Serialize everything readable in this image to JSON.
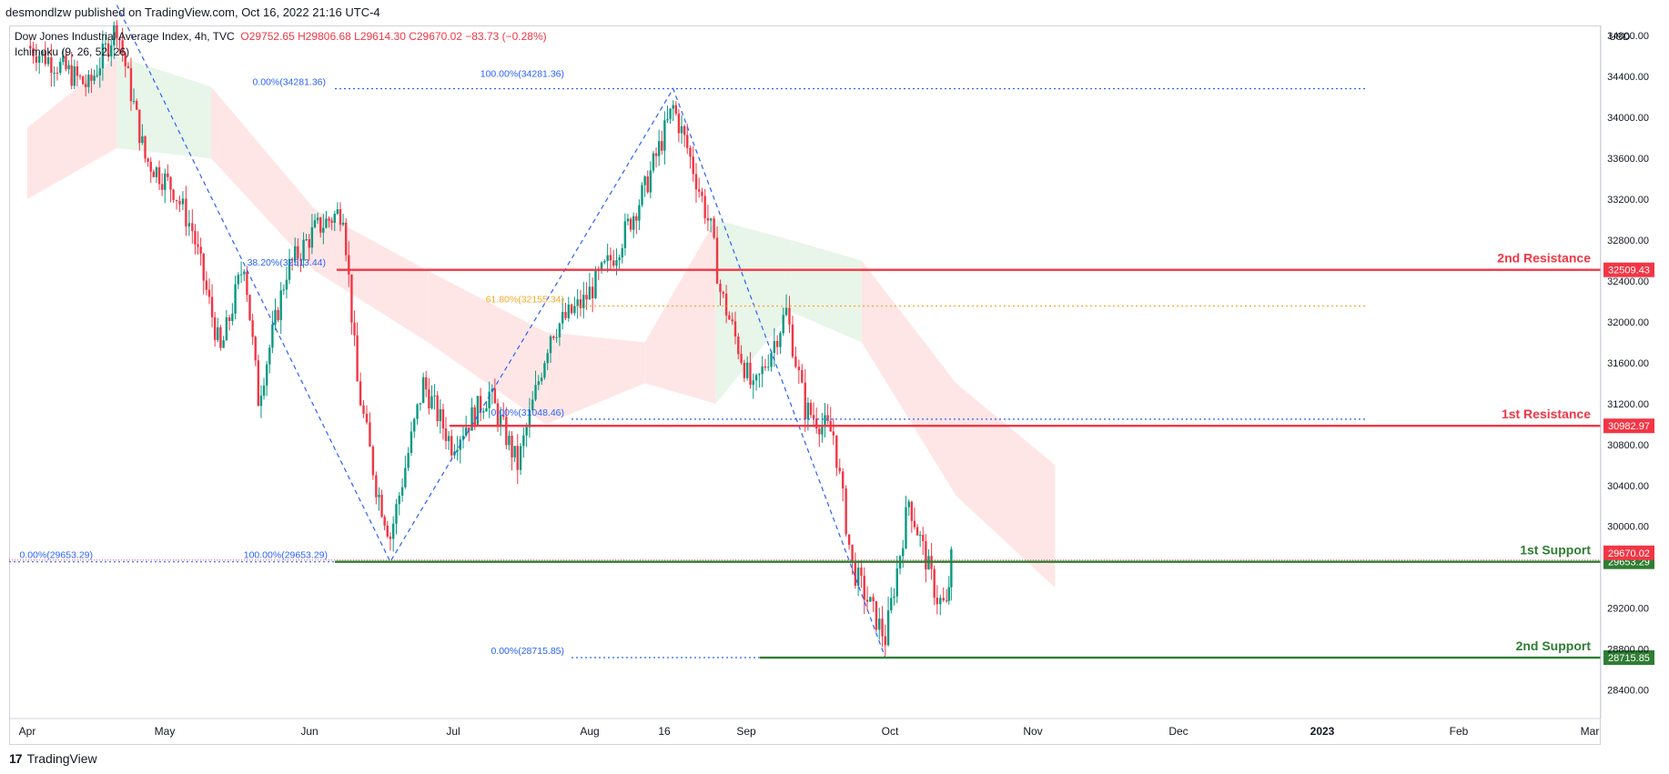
{
  "header": {
    "published_by": "desmondlzw published on TradingView.com, Oct 16, 2022 21:16 UTC-4"
  },
  "legend": {
    "symbol": "Dow Jones Industrial Average Index, 4h, TVC",
    "ohlc": "O29752.65  H29806.68  L29614.30  C29670.02  −83.73 (−0.28%)",
    "indicator": "Ichimoku (9, 26, 52, 26)"
  },
  "footer": {
    "brand": "TradingView",
    "logo_glyph": "17"
  },
  "chart_data": {
    "type": "candlestick",
    "currency_label": "USD",
    "x_ticks": [
      "Apr",
      "May",
      "Jun",
      "Jul",
      "Aug",
      "16",
      "Sep",
      "Oct",
      "Nov",
      "Dec",
      "2023",
      "Feb",
      "Mar"
    ],
    "x_ticks_bold": [
      "2023"
    ],
    "y_ticks": [
      "34800.00",
      "34400.00",
      "34000.00",
      "33600.00",
      "33200.00",
      "32800.00",
      "32400.00",
      "32000.00",
      "31600.00",
      "31200.00",
      "30800.00",
      "30400.00",
      "30000.00",
      "29200.00",
      "28800.00",
      "28400.00"
    ],
    "ylim": [
      28120,
      34900
    ],
    "x_range_months": [
      "2022-04",
      "2023-03"
    ],
    "colors": {
      "up": "#089981",
      "down": "#f23645",
      "resistance": "#f23645",
      "support": "#2e7d32",
      "fib_blue": "#2962ff",
      "fib_gold": "#f9a825",
      "cloud_bull": "#e8f5e9",
      "cloud_bear": "#ffe6e6"
    },
    "horizontal_levels": [
      {
        "label": "2nd Resistance",
        "value": 32509.43,
        "tag": "32509.43",
        "kind": "resistance"
      },
      {
        "label": "1st Resistance",
        "value": 30982.97,
        "tag": "30982.97",
        "kind": "resistance"
      },
      {
        "label": "1st Support",
        "value": 29653.29,
        "tag": "29653.29",
        "kind": "support"
      },
      {
        "label": "2nd Support",
        "value": 28715.85,
        "tag": "28715.85",
        "kind": "support"
      }
    ],
    "last_price": {
      "value": 29670.02,
      "tag": "29670.02"
    },
    "fib_labels": [
      {
        "text": "0.00%(34281.36)",
        "value": 34281.36
      },
      {
        "text": "100.00%(34281.36)",
        "value": 34281.36
      },
      {
        "text": "38.20%(32513.44)",
        "value": 32513.44
      },
      {
        "text": "61.80%(32155.34)",
        "value": 32155.34
      },
      {
        "text": "0.00%(31048.46)",
        "value": 31048.46
      },
      {
        "text": "0.00%(29653.29)",
        "value": 29653.29
      },
      {
        "text": "100.00%(29653.29)",
        "value": 29653.29
      },
      {
        "text": "0.00%(28715.85)",
        "value": 28715.85
      }
    ],
    "swing_points": [
      {
        "date": "2022-04-20",
        "value": 35100
      },
      {
        "date": "2022-06-17",
        "value": 29653.29
      },
      {
        "date": "2022-08-16",
        "value": 34281.36
      },
      {
        "date": "2022-09-30",
        "value": 28715.85
      }
    ],
    "price_path": [
      {
        "date": "2022-04-01",
        "value": 34700
      },
      {
        "date": "2022-04-08",
        "value": 34500
      },
      {
        "date": "2022-04-14",
        "value": 34300
      },
      {
        "date": "2022-04-20",
        "value": 34900
      },
      {
        "date": "2022-04-26",
        "value": 33600
      },
      {
        "date": "2022-05-02",
        "value": 33300
      },
      {
        "date": "2022-05-06",
        "value": 32900
      },
      {
        "date": "2022-05-12",
        "value": 31700
      },
      {
        "date": "2022-05-17",
        "value": 32600
      },
      {
        "date": "2022-05-20",
        "value": 31250
      },
      {
        "date": "2022-05-26",
        "value": 32500
      },
      {
        "date": "2022-06-01",
        "value": 32900
      },
      {
        "date": "2022-06-07",
        "value": 33100
      },
      {
        "date": "2022-06-10",
        "value": 31400
      },
      {
        "date": "2022-06-14",
        "value": 30400
      },
      {
        "date": "2022-06-17",
        "value": 29900
      },
      {
        "date": "2022-06-24",
        "value": 31400
      },
      {
        "date": "2022-06-30",
        "value": 30800
      },
      {
        "date": "2022-07-08",
        "value": 31300
      },
      {
        "date": "2022-07-14",
        "value": 30600
      },
      {
        "date": "2022-07-21",
        "value": 31900
      },
      {
        "date": "2022-07-28",
        "value": 32200
      },
      {
        "date": "2022-08-04",
        "value": 32700
      },
      {
        "date": "2022-08-10",
        "value": 33300
      },
      {
        "date": "2022-08-16",
        "value": 34100
      },
      {
        "date": "2022-08-19",
        "value": 33700
      },
      {
        "date": "2022-08-24",
        "value": 32900
      },
      {
        "date": "2022-08-26",
        "value": 32300
      },
      {
        "date": "2022-09-02",
        "value": 31300
      },
      {
        "date": "2022-09-09",
        "value": 32100
      },
      {
        "date": "2022-09-13",
        "value": 31150
      },
      {
        "date": "2022-09-19",
        "value": 30900
      },
      {
        "date": "2022-09-23",
        "value": 29600
      },
      {
        "date": "2022-09-30",
        "value": 28900
      },
      {
        "date": "2022-10-05",
        "value": 30250
      },
      {
        "date": "2022-10-11",
        "value": 29300
      },
      {
        "date": "2022-10-13",
        "value": 29200
      },
      {
        "date": "2022-10-14",
        "value": 29670
      }
    ],
    "ichimoku_cloud": [
      {
        "date": "2022-04-01",
        "top": 33900,
        "bottom": 33200,
        "bias": "bear"
      },
      {
        "date": "2022-04-20",
        "top": 34600,
        "bottom": 33700,
        "bias": "bull"
      },
      {
        "date": "2022-05-10",
        "top": 34300,
        "bottom": 33600,
        "bias": "bear"
      },
      {
        "date": "2022-06-01",
        "top": 33100,
        "bottom": 32500,
        "bias": "bear"
      },
      {
        "date": "2022-06-25",
        "top": 32500,
        "bottom": 31800,
        "bias": "bear"
      },
      {
        "date": "2022-07-20",
        "top": 31900,
        "bottom": 31000,
        "bias": "bear"
      },
      {
        "date": "2022-08-10",
        "top": 31800,
        "bottom": 31400,
        "bias": "bear"
      },
      {
        "date": "2022-08-25",
        "top": 33000,
        "bottom": 31200,
        "bias": "bull"
      },
      {
        "date": "2022-09-10",
        "top": 32800,
        "bottom": 32100,
        "bias": "bull"
      },
      {
        "date": "2022-09-25",
        "top": 32600,
        "bottom": 31800,
        "bias": "bear"
      },
      {
        "date": "2022-10-15",
        "top": 31400,
        "bottom": 30300,
        "bias": "bear"
      },
      {
        "date": "2022-11-05",
        "top": 30600,
        "bottom": 29400,
        "bias": "bear"
      }
    ]
  }
}
